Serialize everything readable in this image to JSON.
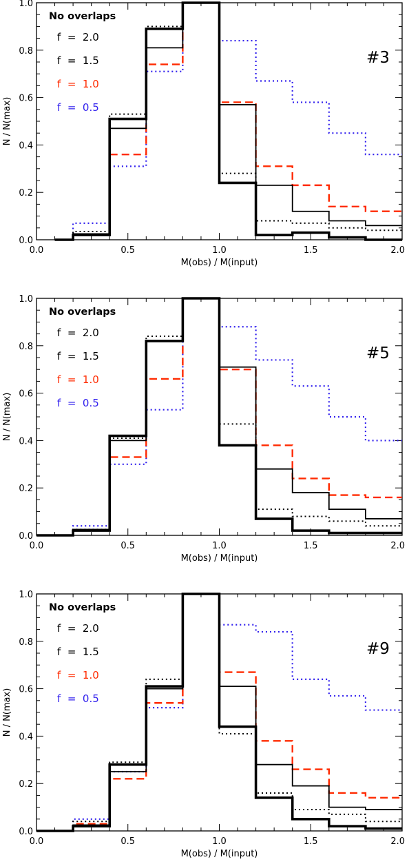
{
  "chart_data": [
    {
      "type": "line",
      "step": true,
      "tag": "#3",
      "xlabel": "M(obs) / M(input)",
      "ylabel": "N / N(max)",
      "xlim": [
        0,
        2
      ],
      "ylim": [
        0,
        1
      ],
      "x_ticks": [
        "0.0",
        "0.5",
        "1.0",
        "1.5",
        "2.0"
      ],
      "y_ticks": [
        "0.0",
        "0.2",
        "0.4",
        "0.6",
        "0.8",
        "1.0"
      ],
      "legend": {
        "title": "No overlaps",
        "placement": "top-left",
        "entries": [
          {
            "label": "f = 2.0",
            "color": "#000000"
          },
          {
            "label": "f = 1.5",
            "color": "#000000"
          },
          {
            "label": "f = 1.0",
            "color": "#ff2a00"
          },
          {
            "label": "f = 0.5",
            "color": "#3322ee"
          }
        ]
      },
      "bin_edges": [
        0.1,
        0.2,
        0.4,
        0.6,
        0.8,
        1.0,
        1.2,
        1.4,
        1.6,
        1.8,
        2.0
      ],
      "series": [
        {
          "name": "f = 2.0",
          "color": "#000000",
          "style": "thick-solid",
          "values": [
            0.0,
            0.02,
            0.51,
            0.89,
            1.0,
            0.24,
            0.02,
            0.03,
            0.01,
            0.0
          ]
        },
        {
          "name": "f = 1.5",
          "color": "#000000",
          "style": "solid",
          "values": [
            0.0,
            0.025,
            0.47,
            0.81,
            1.0,
            0.57,
            0.23,
            0.12,
            0.08,
            0.06
          ]
        },
        {
          "name": "f = 1.0",
          "color": "#ff2a00",
          "style": "dashed",
          "values": [
            0.0,
            0.02,
            0.36,
            0.74,
            1.0,
            0.58,
            0.31,
            0.23,
            0.14,
            0.12
          ]
        },
        {
          "name": "f = 0.5",
          "color": "#3322ee",
          "style": "dotted",
          "values": [
            0.0,
            0.07,
            0.31,
            0.71,
            1.0,
            0.84,
            0.67,
            0.58,
            0.45,
            0.36
          ]
        },
        {
          "name": "No overlaps",
          "color": "#000000",
          "style": "black-dotted",
          "values": [
            0.0,
            0.035,
            0.53,
            0.9,
            1.0,
            0.28,
            0.08,
            0.07,
            0.05,
            0.04
          ]
        }
      ]
    },
    {
      "type": "line",
      "step": true,
      "tag": "#5",
      "xlabel": "M(obs) / M(input)",
      "ylabel": "N / N(max)",
      "xlim": [
        0,
        2
      ],
      "ylim": [
        0,
        1
      ],
      "x_ticks": [
        "0.0",
        "0.5",
        "1.0",
        "1.5",
        "2.0"
      ],
      "y_ticks": [
        "0.0",
        "0.2",
        "0.4",
        "0.6",
        "0.8",
        "1.0"
      ],
      "legend": {
        "title": "No overlaps",
        "placement": "top-left",
        "entries": [
          {
            "label": "f = 2.0",
            "color": "#000000"
          },
          {
            "label": "f = 1.5",
            "color": "#000000"
          },
          {
            "label": "f = 1.0",
            "color": "#ff2a00"
          },
          {
            "label": "f = 0.5",
            "color": "#3322ee"
          }
        ]
      },
      "bin_edges": [
        0.0,
        0.2,
        0.4,
        0.6,
        0.8,
        1.0,
        1.2,
        1.4,
        1.6,
        1.8,
        2.0
      ],
      "series": [
        {
          "name": "f = 2.0",
          "color": "#000000",
          "style": "thick-solid",
          "values": [
            0.0,
            0.02,
            0.42,
            0.82,
            1.0,
            0.38,
            0.07,
            0.02,
            0.01,
            0.01
          ]
        },
        {
          "name": "f = 1.5",
          "color": "#000000",
          "style": "solid",
          "values": [
            0.0,
            0.025,
            0.4,
            0.82,
            1.0,
            0.71,
            0.28,
            0.18,
            0.11,
            0.07
          ]
        },
        {
          "name": "f = 1.0",
          "color": "#ff2a00",
          "style": "dashed",
          "values": [
            0.0,
            0.02,
            0.33,
            0.66,
            1.0,
            0.7,
            0.38,
            0.24,
            0.17,
            0.16
          ]
        },
        {
          "name": "f = 0.5",
          "color": "#3322ee",
          "style": "dotted",
          "values": [
            0.0,
            0.04,
            0.3,
            0.53,
            1.0,
            0.88,
            0.74,
            0.63,
            0.5,
            0.4
          ]
        },
        {
          "name": "No overlaps",
          "color": "#000000",
          "style": "black-dotted",
          "values": [
            0.0,
            0.025,
            0.41,
            0.84,
            1.0,
            0.47,
            0.11,
            0.08,
            0.06,
            0.04
          ]
        }
      ]
    },
    {
      "type": "line",
      "step": true,
      "tag": "#9",
      "xlabel": "M(obs) / M(input)",
      "ylabel": "N / N(max)",
      "xlim": [
        0,
        2
      ],
      "ylim": [
        0,
        1
      ],
      "x_ticks": [
        "0.0",
        "0.5",
        "1.0",
        "1.5",
        "2.0"
      ],
      "y_ticks": [
        "0.0",
        "0.2",
        "0.4",
        "0.6",
        "0.8",
        "1.0"
      ],
      "legend": {
        "title": "No overlaps",
        "placement": "top-left",
        "entries": [
          {
            "label": "f = 2.0",
            "color": "#000000"
          },
          {
            "label": "f = 1.5",
            "color": "#000000"
          },
          {
            "label": "f = 1.0",
            "color": "#ff2a00"
          },
          {
            "label": "f = 0.5",
            "color": "#3322ee"
          }
        ]
      },
      "bin_edges": [
        0.0,
        0.2,
        0.4,
        0.6,
        0.8,
        1.0,
        1.2,
        1.4,
        1.6,
        1.8,
        2.0
      ],
      "series": [
        {
          "name": "f = 2.0",
          "color": "#000000",
          "style": "thick-solid",
          "values": [
            0.0,
            0.02,
            0.28,
            0.61,
            1.0,
            0.44,
            0.14,
            0.05,
            0.02,
            0.01
          ]
        },
        {
          "name": "f = 1.5",
          "color": "#000000",
          "style": "solid",
          "values": [
            0.0,
            0.025,
            0.25,
            0.6,
            1.0,
            0.61,
            0.28,
            0.19,
            0.1,
            0.09
          ]
        },
        {
          "name": "f = 1.0",
          "color": "#ff2a00",
          "style": "dashed",
          "values": [
            0.0,
            0.03,
            0.22,
            0.54,
            1.0,
            0.67,
            0.38,
            0.26,
            0.16,
            0.14
          ]
        },
        {
          "name": "f = 0.5",
          "color": "#3322ee",
          "style": "dotted",
          "values": [
            0.0,
            0.05,
            0.25,
            0.52,
            1.0,
            0.87,
            0.84,
            0.64,
            0.57,
            0.51
          ]
        },
        {
          "name": "No overlaps",
          "color": "#000000",
          "style": "black-dotted",
          "values": [
            0.0,
            0.04,
            0.29,
            0.64,
            1.0,
            0.41,
            0.16,
            0.09,
            0.07,
            0.04
          ]
        }
      ]
    }
  ]
}
